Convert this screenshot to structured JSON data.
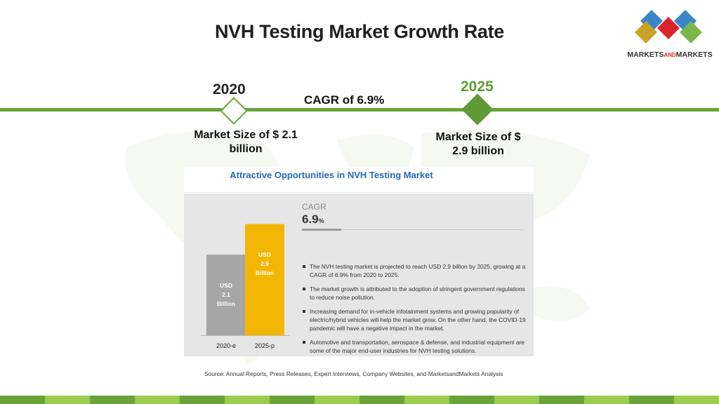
{
  "title": "NVH Testing Market Growth Rate",
  "logo": {
    "text_main": "MARKETS",
    "text_and": "AND",
    "text_end": "MARKETS"
  },
  "timeline": {
    "start_year": "2020",
    "end_year": "2025",
    "cagr_label": "CAGR of 6.9%",
    "start_size": "Market Size of $ 2.1 billion",
    "end_size": "Market Size of $ 2.9 billion"
  },
  "panel": {
    "title": "Attractive Opportunities in NVH Testing Market",
    "cagr_label": "CAGR",
    "cagr_value": "6.9",
    "cagr_unit": "%",
    "bullets": [
      "The NVH testing market is projected to reach USD 2.9 billion by 2025, growing at a CAGR of 6.9% from 2020 to 2025.",
      "The market growth is attributed to the adoption of stringent government regulations to reduce noise pollution.",
      "Increasing demand for in-vehicle infotainment systems and growing popularity of electric/hybrid vehicles will help the market grow. On the other hand, the COVID-19 pandemic will have a negative impact in the market.",
      "Automotive and transportation, aerospace & defense, and industrial equipment are some of the major end-user industries for NVH testing solutions."
    ]
  },
  "chart_data": {
    "type": "bar",
    "categories": [
      "2020-e",
      "2025-p"
    ],
    "values": [
      2.1,
      2.9
    ],
    "bar_labels": [
      [
        "USD",
        "2.1",
        "Billion"
      ],
      [
        "USD",
        "2.9",
        "Billion"
      ]
    ],
    "colors": [
      "#a6a6a6",
      "#f2b705"
    ],
    "ylim": [
      0,
      3.2
    ]
  },
  "source": "Source: Annual Reports, Press Releases, Expert Interviews, Company Websites, and MarketsandMarkets Analysis",
  "footer_colors": [
    "#6aa33a",
    "#9ccc50"
  ]
}
